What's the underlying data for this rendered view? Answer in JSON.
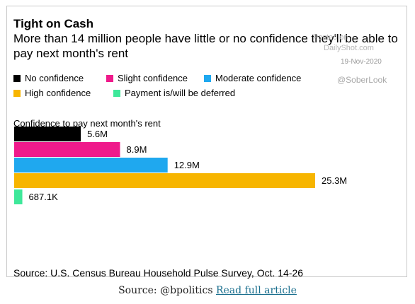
{
  "header": {
    "title": "Tight on Cash",
    "subtitle": "More than 14 million people have little or no confidence they'll be able to pay next month's rent"
  },
  "watermark": {
    "posted_on": "Posted on",
    "site": "DailyShot.com",
    "date": "19-Nov-2020",
    "handle": "@SoberLook"
  },
  "chart_data": {
    "type": "bar",
    "orientation": "horizontal",
    "title": "Confidence to pay next month's rent",
    "categories": [
      "No confidence",
      "Slight confidence",
      "Moderate confidence",
      "High confidence",
      "Payment is/will be deferred"
    ],
    "values": [
      5600000,
      8900000,
      12900000,
      25300000,
      687100
    ],
    "value_labels": [
      "5.6M",
      "8.9M",
      "12.9M",
      "25.3M",
      "687.1K"
    ],
    "colors": [
      "#000000",
      "#ef1a8b",
      "#1fa8ef",
      "#f7b500",
      "#3ee89a"
    ],
    "legend_placement": "top-left",
    "grid": false
  },
  "source_text": "Source: U.S. Census Bureau Household Pulse Survey, Oct. 14-26",
  "footer": {
    "source": "Source: @bpolitics",
    "link_label": "Read full article"
  }
}
